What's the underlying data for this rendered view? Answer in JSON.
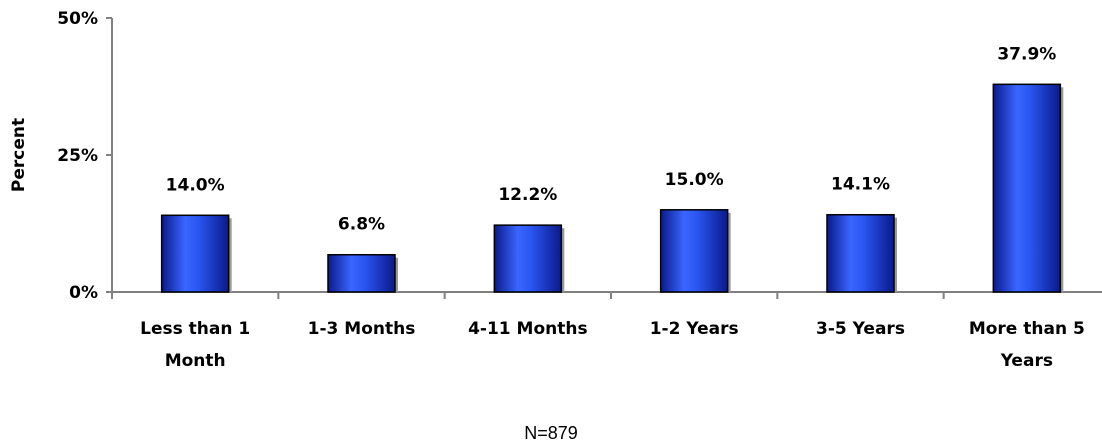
{
  "chart_data": {
    "type": "bar",
    "categories": [
      [
        "Less than 1",
        "Month"
      ],
      [
        "1-3 Months"
      ],
      [
        "4-11 Months"
      ],
      [
        "1-2 Years"
      ],
      [
        "3-5 Years"
      ],
      [
        "More than 5",
        "Years"
      ]
    ],
    "values": [
      14.0,
      6.8,
      12.2,
      15.0,
      14.1,
      37.9
    ],
    "value_labels": [
      "14.0%",
      "6.8%",
      "12.2%",
      "15.0%",
      "14.1%",
      "37.9%"
    ],
    "ylabel": "Percent",
    "ylim": [
      0,
      50
    ],
    "yticks": [
      0,
      25,
      50
    ],
    "ytick_labels": [
      "0%",
      "25%",
      "50%"
    ],
    "grid": false,
    "bar_color": "#2f57e8",
    "bar_edge_color": "#000000"
  },
  "note": "N=879"
}
